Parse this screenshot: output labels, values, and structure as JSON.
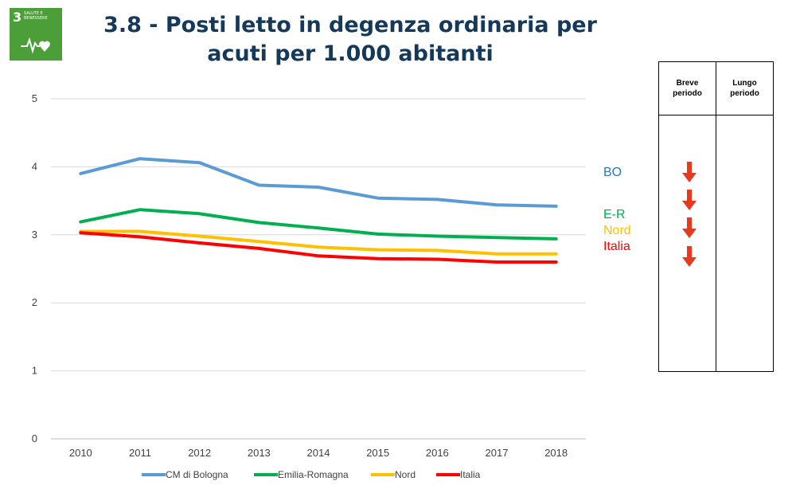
{
  "badge": {
    "number": "3",
    "label": "SALUTE E BENESSERE",
    "icon": "heartbeat-heart-icon",
    "color": "#4c9f38"
  },
  "title": "3.8 - Posti letto in degenza ordinaria per acuti per 1.000 abitanti",
  "chart_data": {
    "type": "line",
    "title": "3.8 - Posti letto in degenza ordinaria per acuti per 1.000 abitanti",
    "xlabel": "",
    "ylabel": "",
    "x": [
      "2010",
      "2011",
      "2012",
      "2013",
      "2014",
      "2015",
      "2016",
      "2017",
      "2018"
    ],
    "ylim": [
      0,
      5
    ],
    "yticks": [
      "0",
      "1",
      "2",
      "3",
      "4",
      "5"
    ],
    "grid": true,
    "legend": "bottom",
    "series": [
      {
        "name": "CM di Bologna",
        "color": "#5b9bd5",
        "values": [
          3.9,
          4.12,
          4.06,
          3.73,
          3.7,
          3.54,
          3.52,
          3.44,
          3.42
        ]
      },
      {
        "name": "Emilia-Romagna",
        "color": "#00b050",
        "values": [
          3.19,
          3.37,
          3.31,
          3.18,
          3.1,
          3.01,
          2.98,
          2.96,
          2.94
        ]
      },
      {
        "name": "Nord",
        "color": "#ffc000",
        "values": [
          3.05,
          3.05,
          2.98,
          2.9,
          2.82,
          2.78,
          2.77,
          2.72,
          2.72
        ]
      },
      {
        "name": "Italia",
        "color": "#ff0000",
        "values": [
          3.03,
          2.97,
          2.88,
          2.8,
          2.69,
          2.65,
          2.64,
          2.6,
          2.6
        ]
      }
    ]
  },
  "series_labels": [
    {
      "text": "BO",
      "color": "#2e75b6"
    },
    {
      "text": "E-R",
      "color": "#00b050"
    },
    {
      "text": "Nord",
      "color": "#ffc000"
    },
    {
      "text": "Italia",
      "color": "#ff0000"
    }
  ],
  "trend_table": {
    "headers": [
      "Breve\nperiodo",
      "Lungo\nperiodo"
    ],
    "short_term": [
      {
        "series": "BO",
        "direction": "down",
        "icon": "red-down-arrow-icon"
      },
      {
        "series": "E-R",
        "direction": "down",
        "icon": "red-down-arrow-icon"
      },
      {
        "series": "Nord",
        "direction": "down",
        "icon": "red-down-arrow-icon"
      },
      {
        "series": "Italia",
        "direction": "down",
        "icon": "red-down-arrow-icon"
      }
    ],
    "arrow_color": "#e8391e"
  }
}
